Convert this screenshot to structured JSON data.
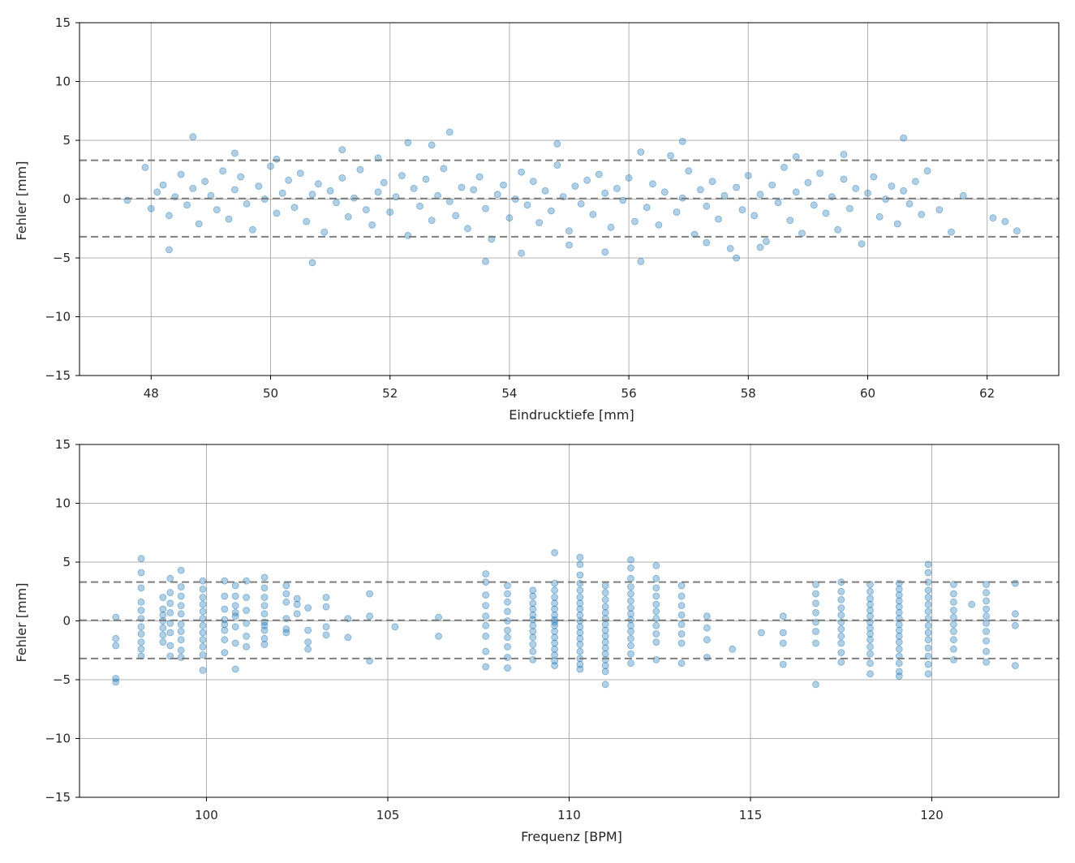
{
  "chart_data": [
    {
      "type": "scatter",
      "xlabel": "Eindrucktiefe [mm]",
      "ylabel": "Fehler [mm]",
      "xlim": [
        46.8,
        63.2
      ],
      "ylim": [
        -15,
        15
      ],
      "xticks": [
        48,
        50,
        52,
        54,
        56,
        58,
        60,
        62
      ],
      "yticks": [
        -15,
        -10,
        -5,
        0,
        5,
        10,
        15
      ],
      "grid": true,
      "point_color": "#1f77b4",
      "point_alpha": 0.35,
      "reference_lines": [
        {
          "y": 3.3,
          "style": "dashed"
        },
        {
          "y": 0.05,
          "style": "dashed"
        },
        {
          "y": -3.2,
          "style": "dashed"
        }
      ],
      "x": [
        47.6,
        47.9,
        48.0,
        48.1,
        48.2,
        48.3,
        48.4,
        48.5,
        48.6,
        48.7,
        48.8,
        48.9,
        49.0,
        49.1,
        49.2,
        49.3,
        49.4,
        49.5,
        49.6,
        49.7,
        49.8,
        49.9,
        50.0,
        50.1,
        50.2,
        50.3,
        50.4,
        50.5,
        50.6,
        50.7,
        50.8,
        50.9,
        51.0,
        51.1,
        51.2,
        51.3,
        51.4,
        51.5,
        51.6,
        51.7,
        51.8,
        51.9,
        52.0,
        52.1,
        52.2,
        52.3,
        52.4,
        52.5,
        52.6,
        52.7,
        52.8,
        52.9,
        53.0,
        53.1,
        53.2,
        53.3,
        53.4,
        53.5,
        53.6,
        53.7,
        53.8,
        53.9,
        54.0,
        54.1,
        54.2,
        54.3,
        54.4,
        54.5,
        54.6,
        54.7,
        54.8,
        54.9,
        55.0,
        55.1,
        55.2,
        55.3,
        55.4,
        55.5,
        55.6,
        55.7,
        55.8,
        55.9,
        56.0,
        56.1,
        56.2,
        56.3,
        56.4,
        56.5,
        56.6,
        56.7,
        56.8,
        56.9,
        57.0,
        57.1,
        57.2,
        57.3,
        57.4,
        57.5,
        57.6,
        57.7,
        57.8,
        57.9,
        58.0,
        58.1,
        58.2,
        58.3,
        58.4,
        58.5,
        58.6,
        58.7,
        58.8,
        58.9,
        59.0,
        59.1,
        59.2,
        59.3,
        59.4,
        59.5,
        59.6,
        59.7,
        59.8,
        59.9,
        60.0,
        60.1,
        60.2,
        60.3,
        60.4,
        60.5,
        60.6,
        60.7,
        60.8,
        60.9,
        61.0,
        61.2,
        61.4,
        61.6,
        62.1,
        62.3,
        62.5,
        48.7,
        53.0,
        60.6,
        50.7,
        52.3,
        55.6,
        51.2,
        54.2,
        57.8,
        49.4,
        53.6,
        56.9,
        58.2,
        51.8,
        55.0,
        48.3,
        52.7,
        57.3,
        59.6,
        50.1,
        54.8,
        56.2,
        58.8
      ],
      "y": [
        -0.1,
        2.7,
        -0.8,
        0.6,
        1.2,
        -1.4,
        0.2,
        2.1,
        -0.5,
        0.9,
        -2.1,
        1.5,
        0.3,
        -0.9,
        2.4,
        -1.7,
        0.8,
        1.9,
        -0.4,
        -2.6,
        1.1,
        0.0,
        2.8,
        -1.2,
        0.5,
        1.6,
        -0.7,
        2.2,
        -1.9,
        0.4,
        1.3,
        -2.8,
        0.7,
        -0.3,
        1.8,
        -1.5,
        0.1,
        2.5,
        -0.9,
        -2.2,
        0.6,
        1.4,
        -1.1,
        0.2,
        2.0,
        -3.1,
        0.9,
        -0.6,
        1.7,
        -1.8,
        0.3,
        2.6,
        -0.2,
        -1.4,
        1.0,
        -2.5,
        0.8,
        1.9,
        -0.8,
        -3.4,
        0.4,
        1.2,
        -1.6,
        0.0,
        2.3,
        -0.5,
        1.5,
        -2.0,
        0.7,
        -1.0,
        2.9,
        0.2,
        -2.7,
        1.1,
        -0.4,
        1.6,
        -1.3,
        2.1,
        0.5,
        -2.4,
        0.9,
        -0.1,
        1.8,
        -1.9,
        4.0,
        -0.7,
        1.3,
        -2.2,
        0.6,
        3.7,
        -1.1,
        0.1,
        2.4,
        -3.0,
        0.8,
        -0.6,
        1.5,
        -1.7,
        0.3,
        -4.2,
        1.0,
        -0.9,
        2.0,
        -1.4,
        0.4,
        -3.6,
        1.2,
        -0.3,
        2.7,
        -1.8,
        0.6,
        -2.9,
        1.4,
        -0.5,
        2.2,
        -1.2,
        0.2,
        -2.6,
        1.7,
        -0.8,
        0.9,
        -3.8,
        0.5,
        1.9,
        -1.5,
        0.0,
        1.1,
        -2.1,
        0.7,
        -0.4,
        1.5,
        -1.3,
        2.4,
        -0.9,
        -2.8,
        0.3,
        -1.6,
        -1.9,
        -2.7,
        5.3,
        5.7,
        5.2,
        -5.4,
        4.8,
        -4.5,
        4.2,
        -4.6,
        -5.0,
        3.9,
        -5.3,
        4.9,
        -4.1,
        3.5,
        -3.9,
        -4.3,
        4.6,
        -3.7,
        3.8,
        3.4,
        4.7,
        -5.3,
        3.6
      ]
    },
    {
      "type": "scatter",
      "xlabel": "Frequenz [BPM]",
      "ylabel": "Fehler [mm]",
      "xlim": [
        96.5,
        123.5
      ],
      "ylim": [
        -15,
        15
      ],
      "xticks": [
        100,
        105,
        110,
        115,
        120
      ],
      "yticks": [
        -15,
        -10,
        -5,
        0,
        5,
        10,
        15
      ],
      "grid": true,
      "point_color": "#1f77b4",
      "point_alpha": 0.35,
      "reference_lines": [
        {
          "y": 3.3,
          "style": "dashed"
        },
        {
          "y": 0.05,
          "style": "dashed"
        },
        {
          "y": -3.2,
          "style": "dashed"
        }
      ],
      "x": [
        97.5,
        97.5,
        97.5,
        97.5,
        97.5,
        98.2,
        98.2,
        98.2,
        98.2,
        98.2,
        98.2,
        98.2,
        98.2,
        98.2,
        98.2,
        98.2,
        98.8,
        98.8,
        98.8,
        98.8,
        98.8,
        98.8,
        98.8,
        99.0,
        99.0,
        99.0,
        99.0,
        99.0,
        99.0,
        99.0,
        99.0,
        99.3,
        99.3,
        99.3,
        99.3,
        99.3,
        99.3,
        99.3,
        99.3,
        99.3,
        99.3,
        99.9,
        99.9,
        99.9,
        99.9,
        99.9,
        99.9,
        99.9,
        99.9,
        99.9,
        99.9,
        99.9,
        99.9,
        100.5,
        100.5,
        100.5,
        100.5,
        100.5,
        100.5,
        100.5,
        100.5,
        100.8,
        100.8,
        100.8,
        100.8,
        100.8,
        100.8,
        100.8,
        100.8,
        101.1,
        101.1,
        101.1,
        101.1,
        101.1,
        101.1,
        101.6,
        101.6,
        101.6,
        101.6,
        101.6,
        101.6,
        101.6,
        101.6,
        101.6,
        101.6,
        102.2,
        102.2,
        102.2,
        102.2,
        102.2,
        102.2,
        102.5,
        102.5,
        102.5,
        102.8,
        102.8,
        102.8,
        102.8,
        103.3,
        103.3,
        103.3,
        103.3,
        103.9,
        103.9,
        104.5,
        104.5,
        104.5,
        105.2,
        106.4,
        106.4,
        107.7,
        107.7,
        107.7,
        107.7,
        107.7,
        107.7,
        107.7,
        107.7,
        107.7,
        108.3,
        108.3,
        108.3,
        108.3,
        108.3,
        108.3,
        108.3,
        108.3,
        108.3,
        108.3,
        109.0,
        109.0,
        109.0,
        109.0,
        109.0,
        109.0,
        109.0,
        109.0,
        109.0,
        109.0,
        109.0,
        109.0,
        109.6,
        109.6,
        109.6,
        109.6,
        109.6,
        109.6,
        109.6,
        109.6,
        109.6,
        109.6,
        109.6,
        109.6,
        109.6,
        109.6,
        109.6,
        109.6,
        109.6,
        110.3,
        110.3,
        110.3,
        110.3,
        110.3,
        110.3,
        110.3,
        110.3,
        110.3,
        110.3,
        110.3,
        110.3,
        110.3,
        110.3,
        110.3,
        110.3,
        110.3,
        110.3,
        111.0,
        111.0,
        111.0,
        111.0,
        111.0,
        111.0,
        111.0,
        111.0,
        111.0,
        111.0,
        111.0,
        111.0,
        111.0,
        111.0,
        111.0,
        111.0,
        111.7,
        111.7,
        111.7,
        111.7,
        111.7,
        111.7,
        111.7,
        111.7,
        111.7,
        111.7,
        111.7,
        111.7,
        111.7,
        111.7,
        111.7,
        112.4,
        112.4,
        112.4,
        112.4,
        112.4,
        112.4,
        112.4,
        112.4,
        112.4,
        112.4,
        112.4,
        113.1,
        113.1,
        113.1,
        113.1,
        113.1,
        113.1,
        113.1,
        113.1,
        113.8,
        113.8,
        113.8,
        113.8,
        114.5,
        115.3,
        115.9,
        115.9,
        115.9,
        115.9,
        116.8,
        116.8,
        116.8,
        116.8,
        116.8,
        116.8,
        116.8,
        116.8,
        117.5,
        117.5,
        117.5,
        117.5,
        117.5,
        117.5,
        117.5,
        117.5,
        117.5,
        117.5,
        117.5,
        118.3,
        118.3,
        118.3,
        118.3,
        118.3,
        118.3,
        118.3,
        118.3,
        118.3,
        118.3,
        118.3,
        118.3,
        118.3,
        118.3,
        119.1,
        119.1,
        119.1,
        119.1,
        119.1,
        119.1,
        119.1,
        119.1,
        119.1,
        119.1,
        119.1,
        119.1,
        119.1,
        119.1,
        119.1,
        119.1,
        119.9,
        119.9,
        119.9,
        119.9,
        119.9,
        119.9,
        119.9,
        119.9,
        119.9,
        119.9,
        119.9,
        119.9,
        119.9,
        119.9,
        119.9,
        120.6,
        120.6,
        120.6,
        120.6,
        120.6,
        120.6,
        120.6,
        120.6,
        120.6,
        120.6,
        121.1,
        121.5,
        121.5,
        121.5,
        121.5,
        121.5,
        121.5,
        121.5,
        121.5,
        121.5,
        121.5,
        122.3,
        122.3,
        122.3,
        122.3
      ],
      "y": [
        0.3,
        -1.5,
        -2.1,
        -4.9,
        -5.2,
        5.3,
        4.1,
        2.8,
        1.6,
        0.9,
        0.2,
        -0.5,
        -1.1,
        -1.8,
        -2.4,
        -3.0,
        1.0,
        0.5,
        0.0,
        -0.6,
        -1.2,
        -1.8,
        2.0,
        3.6,
        2.4,
        1.5,
        0.7,
        -0.2,
        -1.0,
        -2.1,
        -3.0,
        4.3,
        2.9,
        2.1,
        1.3,
        0.6,
        -0.3,
        -0.9,
        -1.6,
        -2.5,
        -3.1,
        3.4,
        2.7,
        2.0,
        1.4,
        0.8,
        0.2,
        -0.4,
        -1.0,
        -1.6,
        -2.2,
        -2.9,
        -4.2,
        3.4,
        2.1,
        1.0,
        0.1,
        -0.8,
        -1.6,
        -2.7,
        -0.3,
        3.0,
        2.1,
        1.3,
        0.4,
        -0.5,
        -1.9,
        -4.1,
        0.7,
        3.4,
        2.0,
        0.9,
        -0.2,
        -1.3,
        -2.2,
        3.7,
        2.8,
        2.0,
        1.3,
        0.6,
        -0.1,
        -0.8,
        -1.5,
        -2.0,
        -0.4,
        3.0,
        2.3,
        1.6,
        0.2,
        -0.7,
        -1.0,
        1.9,
        1.4,
        0.6,
        1.1,
        -0.8,
        -1.8,
        -2.4,
        2.0,
        1.2,
        -0.5,
        -1.2,
        0.2,
        -1.4,
        2.3,
        0.4,
        -3.4,
        -0.5,
        0.3,
        -1.3,
        4.0,
        3.3,
        2.2,
        1.3,
        0.4,
        -0.4,
        -1.3,
        -2.6,
        -3.9,
        3.0,
        2.3,
        1.6,
        0.8,
        0.0,
        -0.8,
        -1.4,
        -2.2,
        -3.1,
        -4.0,
        2.6,
        2.1,
        1.5,
        1.0,
        0.5,
        0.1,
        -0.4,
        -0.9,
        -1.4,
        -2.0,
        -2.6,
        -3.3,
        5.8,
        3.2,
        2.6,
        2.0,
        1.5,
        1.0,
        0.5,
        0.1,
        -0.4,
        -0.9,
        -1.4,
        -1.9,
        -2.4,
        -2.9,
        -3.4,
        -3.8,
        -0.1,
        5.4,
        4.8,
        3.9,
        3.2,
        2.6,
        2.0,
        1.5,
        1.0,
        0.5,
        0.0,
        -0.5,
        -1.0,
        -1.5,
        -2.0,
        -2.6,
        -3.2,
        -3.7,
        -4.1,
        3.0,
        2.4,
        1.8,
        1.2,
        0.7,
        0.2,
        -0.3,
        -0.8,
        -1.3,
        -1.8,
        -2.3,
        -2.8,
        -3.3,
        -3.8,
        -4.3,
        -5.4,
        5.2,
        4.5,
        3.6,
        2.9,
        2.3,
        1.7,
        1.1,
        0.6,
        0.1,
        -0.4,
        -0.9,
        -1.5,
        -2.1,
        -2.8,
        -3.6,
        4.7,
        3.6,
        2.8,
        2.1,
        1.4,
        0.8,
        0.2,
        -0.4,
        -1.1,
        -1.8,
        -3.3,
        3.0,
        2.1,
        1.3,
        0.5,
        -0.3,
        -1.1,
        -1.9,
        -3.6,
        0.4,
        -0.6,
        -1.6,
        -3.1,
        -2.4,
        -1.0,
        0.4,
        -1.0,
        -1.9,
        -3.7,
        3.1,
        2.3,
        1.5,
        0.7,
        -0.1,
        -0.9,
        -1.9,
        -5.4,
        3.3,
        2.5,
        1.8,
        1.1,
        0.5,
        -0.1,
        -0.7,
        -1.3,
        -1.9,
        -2.7,
        -3.5,
        3.1,
        2.5,
        1.9,
        1.4,
        0.9,
        0.4,
        -0.1,
        -0.6,
        -1.1,
        -1.6,
        -2.2,
        -2.8,
        -3.6,
        -4.5,
        3.2,
        2.7,
        2.2,
        1.7,
        1.2,
        0.7,
        0.2,
        -0.3,
        -0.8,
        -1.3,
        -1.8,
        -2.4,
        -3.0,
        -3.6,
        -4.3,
        -4.7,
        4.8,
        4.1,
        3.3,
        2.6,
        2.0,
        1.4,
        0.8,
        0.2,
        -0.4,
        -1.0,
        -1.6,
        -2.3,
        -3.0,
        -3.7,
        -4.5,
        3.1,
        2.3,
        1.6,
        0.9,
        0.3,
        -0.3,
        -0.9,
        -1.6,
        -2.4,
        -3.3,
        1.4,
        3.1,
        2.4,
        1.7,
        1.0,
        0.4,
        -0.2,
        -0.9,
        -1.7,
        -2.6,
        -3.5,
        3.2,
        0.6,
        -0.4,
        -3.8
      ]
    }
  ]
}
